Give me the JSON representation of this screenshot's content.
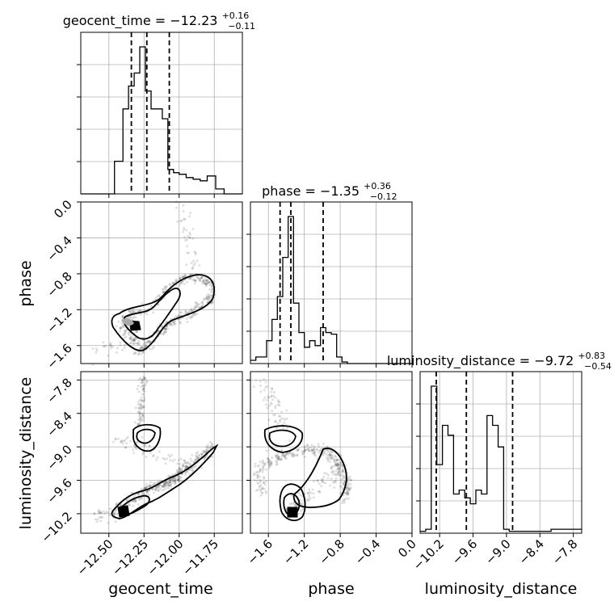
{
  "chart_data": {
    "type": "corner",
    "parameters": [
      "geocent_time",
      "phase",
      "luminosity_distance"
    ],
    "ranges": {
      "geocent_time": [
        -12.7,
        -11.55
      ],
      "phase": [
        -1.8,
        0.0
      ],
      "luminosity_distance": [
        -10.55,
        -7.65
      ]
    },
    "ticks": {
      "geocent_time": {
        "values": [
          -12.5,
          -12.25,
          -12.0,
          -11.75
        ],
        "labels": [
          "−12.50",
          "−12.25",
          "−12.00",
          "−11.75"
        ]
      },
      "phase": {
        "values": [
          -1.6,
          -1.2,
          -0.8,
          -0.4,
          0.0
        ],
        "labels": [
          "−1.6",
          "−1.2",
          "−0.8",
          "−0.4",
          "0.0"
        ]
      },
      "luminosity_distance": {
        "values": [
          -10.2,
          -9.6,
          -9.0,
          -8.4,
          -7.8
        ],
        "labels": [
          "−10.2",
          "−9.6",
          "−9.0",
          "−8.4",
          "−7.8"
        ]
      }
    },
    "titles": {
      "geocent_time": {
        "text": "geocent_time = −12.23",
        "plus": "+0.16",
        "minus": "−0.11"
      },
      "phase": {
        "text": "phase = −1.35",
        "plus": "+0.36",
        "minus": "−0.12"
      },
      "luminosity_distance": {
        "text": "luminosity_distance = −9.72",
        "plus": "+0.83",
        "minus": "−0.54"
      }
    },
    "quantiles": {
      "geocent_time": [
        -12.34,
        -12.23,
        -12.07
      ],
      "phase": [
        -1.47,
        -1.35,
        -0.99
      ],
      "luminosity_distance": [
        -10.26,
        -9.72,
        -8.89
      ]
    },
    "histograms": {
      "geocent_time": {
        "edges": [
          -12.7,
          -12.64,
          -12.58,
          -12.52,
          -12.46,
          -12.4,
          -12.36,
          -12.32,
          -12.28,
          -12.24,
          -12.2,
          -12.16,
          -12.12,
          -12.08,
          -12.04,
          -12.0,
          -11.95,
          -11.9,
          -11.85,
          -11.8,
          -11.74,
          -11.68,
          -11.62,
          -11.55
        ],
        "counts": [
          0,
          0,
          0,
          0,
          20,
          52,
          66,
          74,
          90,
          63,
          52,
          52,
          46,
          15,
          13,
          12,
          10,
          9,
          8,
          11,
          3,
          0,
          0
        ]
      },
      "phase": {
        "edges": [
          -1.8,
          -1.74,
          -1.68,
          -1.62,
          -1.56,
          -1.5,
          -1.44,
          -1.38,
          -1.32,
          -1.26,
          -1.2,
          -1.14,
          -1.08,
          -1.02,
          -0.96,
          -0.9,
          -0.84,
          -0.78,
          -0.72,
          -0.6,
          0.0
        ],
        "counts": [
          2,
          4,
          4,
          14,
          27,
          41,
          65,
          90,
          37,
          19,
          10,
          14,
          11,
          22,
          19,
          18,
          4,
          1,
          0,
          0
        ]
      },
      "luminosity_distance": {
        "edges": [
          -10.55,
          -10.45,
          -10.35,
          -10.25,
          -10.15,
          -10.05,
          -9.95,
          -9.85,
          -9.75,
          -9.65,
          -9.55,
          -9.45,
          -9.35,
          -9.25,
          -9.15,
          -9.05,
          -8.95,
          -8.85,
          -8.75,
          -8.6,
          -8.4,
          -8.2,
          -8.0,
          -7.8,
          -7.65
        ],
        "counts": [
          1,
          2,
          75,
          35,
          55,
          50,
          20,
          22,
          18,
          15,
          22,
          20,
          60,
          55,
          44,
          2,
          1,
          1,
          1,
          1,
          1,
          2,
          2,
          2
        ]
      }
    },
    "contour_levels": [
      "inner",
      "outer"
    ]
  }
}
